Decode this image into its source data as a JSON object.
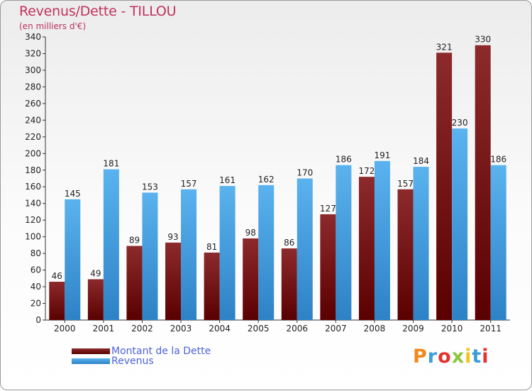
{
  "chart_data": {
    "type": "bar",
    "title": "Revenus/Dette - TILLOU",
    "subtitle": "(en milliers d'€)",
    "categories": [
      "2000",
      "2001",
      "2002",
      "2003",
      "2004",
      "2005",
      "2006",
      "2007",
      "2008",
      "2009",
      "2010",
      "2011"
    ],
    "series": [
      {
        "name": "Montant de la Dette",
        "values": [
          46,
          49,
          89,
          93,
          81,
          98,
          86,
          127,
          172,
          157,
          321,
          330
        ],
        "color": "#7a1518"
      },
      {
        "name": "Revenus",
        "values": [
          145,
          181,
          153,
          157,
          161,
          162,
          170,
          186,
          191,
          184,
          230,
          186
        ],
        "color": "#4da6e8"
      }
    ],
    "ylim": [
      0,
      340
    ],
    "yticks": [
      0,
      20,
      40,
      60,
      80,
      100,
      120,
      140,
      160,
      180,
      200,
      220,
      240,
      260,
      280,
      300,
      320,
      340
    ],
    "grid": false,
    "legend_position": "bottom-left"
  },
  "logo": {
    "text": "Proxiti",
    "colors": [
      "#f08a1c",
      "#3a9fd8",
      "#e5322d",
      "#8cc63f",
      "#f0c419",
      "#3a9fd8",
      "#e5322d"
    ]
  }
}
